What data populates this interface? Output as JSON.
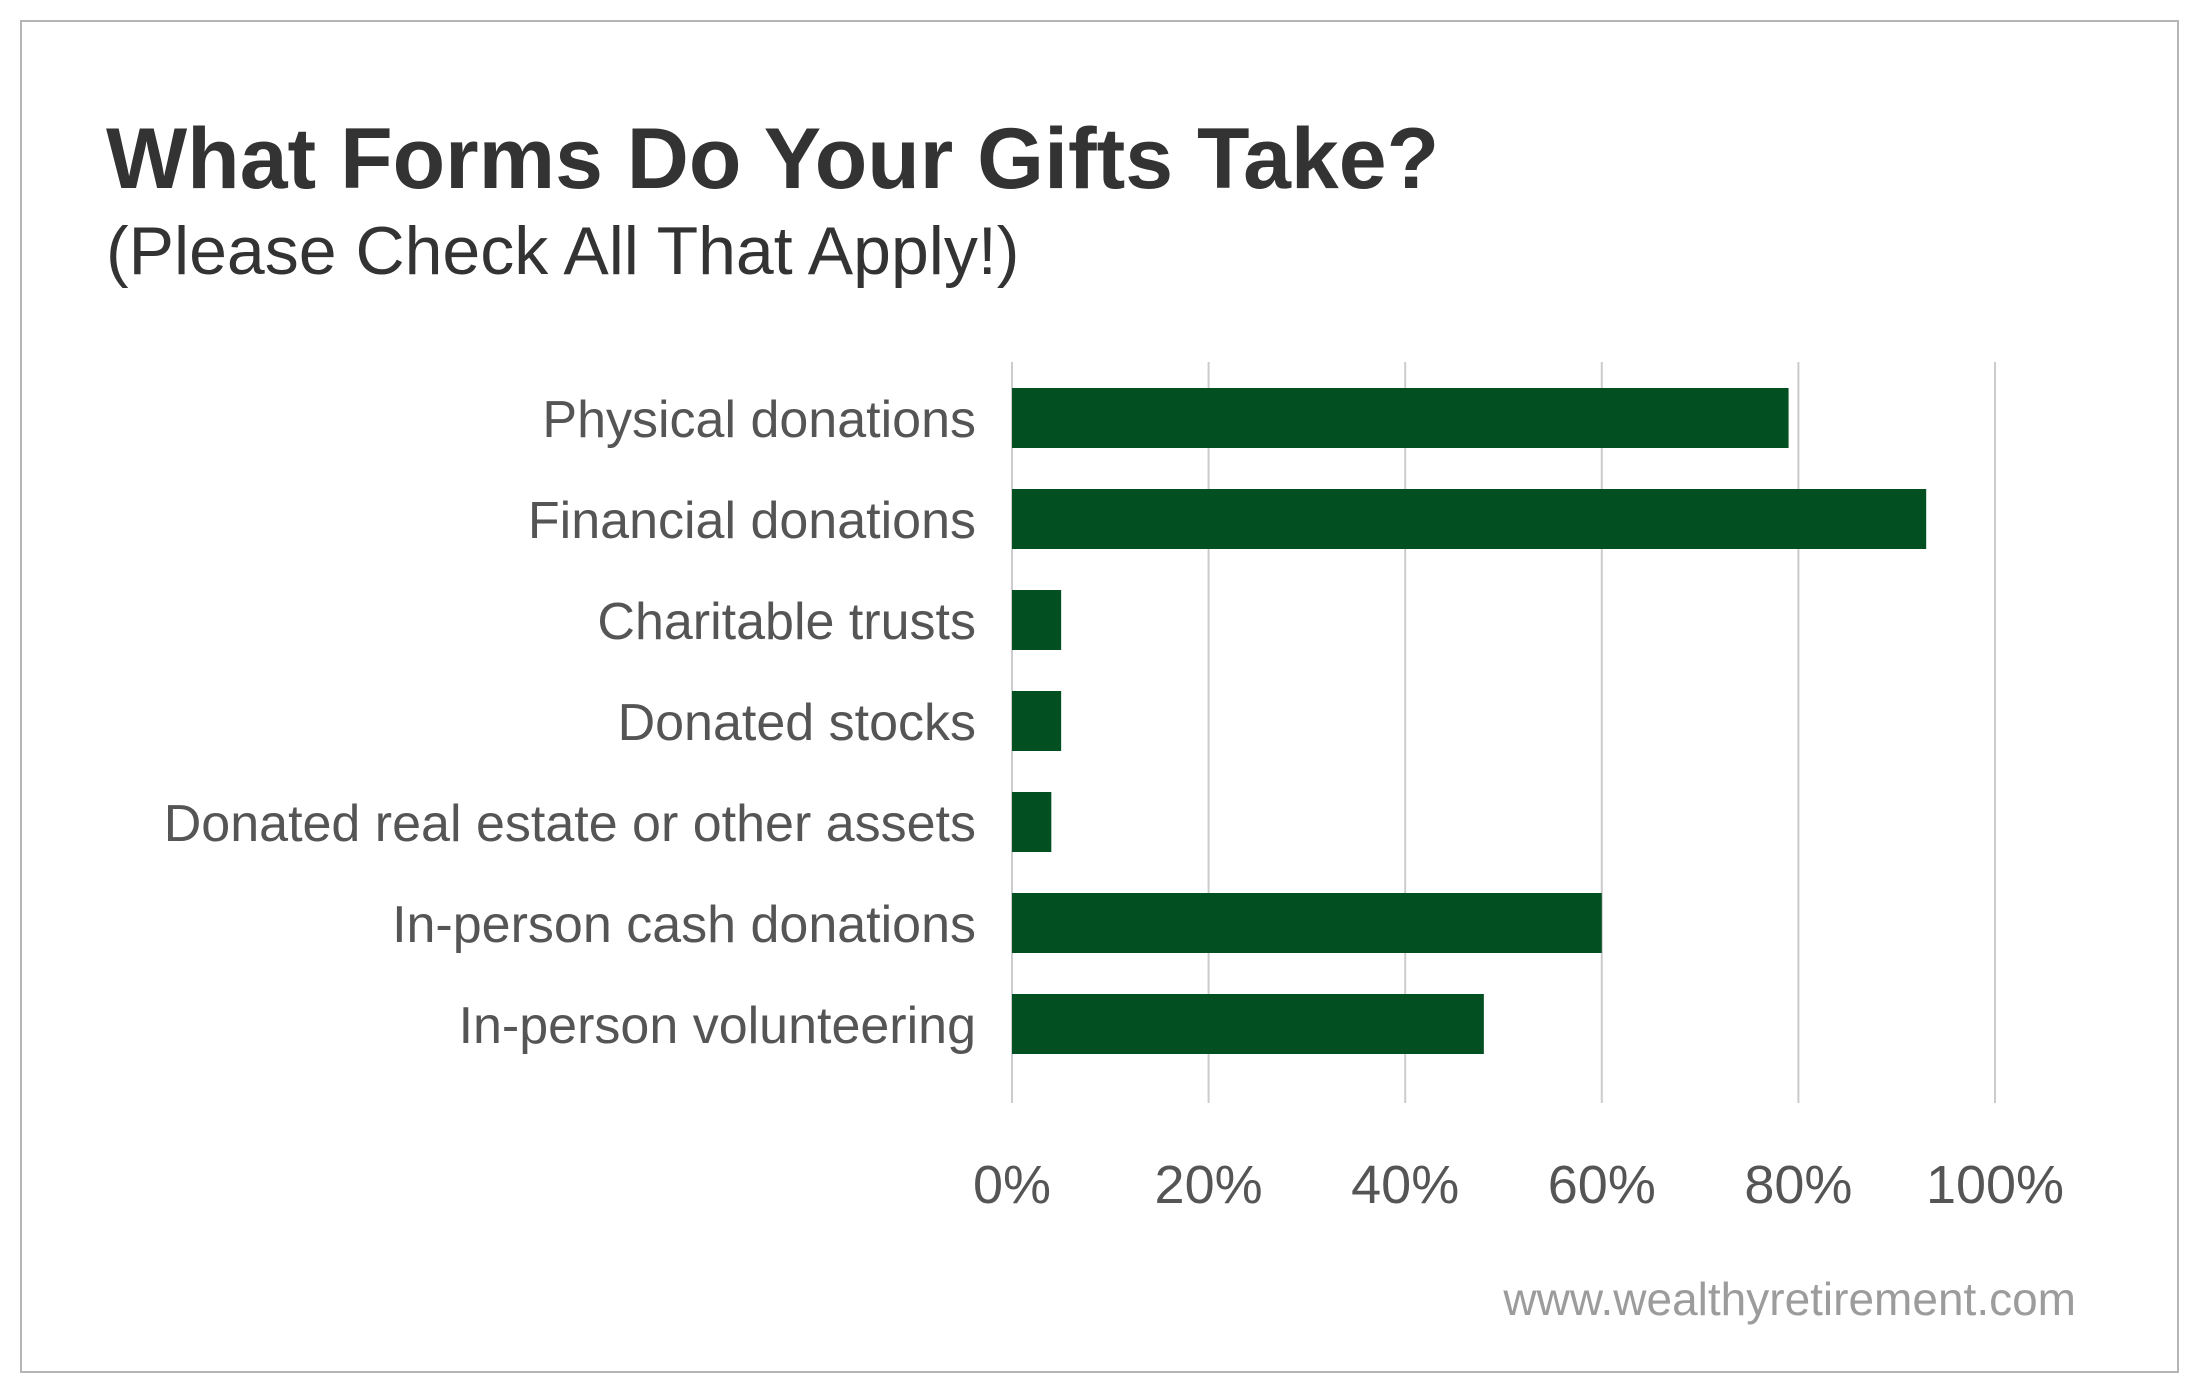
{
  "chart_data": {
    "type": "bar",
    "orientation": "horizontal",
    "title": "What Forms Do Your Gifts Take?",
    "subtitle": "(Please Check All That Apply!)",
    "categories": [
      "Physical donations",
      "Financial donations",
      "Charitable trusts",
      "Donated stocks",
      "Donated real estate or other assets",
      "In-person cash donations",
      "In-person volunteering"
    ],
    "values": [
      79,
      93,
      5,
      5,
      4,
      60,
      48
    ],
    "xlim": [
      0,
      100
    ],
    "x_ticks": [
      0,
      20,
      40,
      60,
      80,
      100
    ],
    "x_tick_labels": [
      "0%",
      "20%",
      "40%",
      "60%",
      "80%",
      "100%"
    ],
    "grid": true,
    "legend": "none",
    "bar_color": "#024f22",
    "grid_color": "#cccccc",
    "label_color": "#555555"
  },
  "footer": {
    "source": "www.wealthyretirement.com"
  }
}
